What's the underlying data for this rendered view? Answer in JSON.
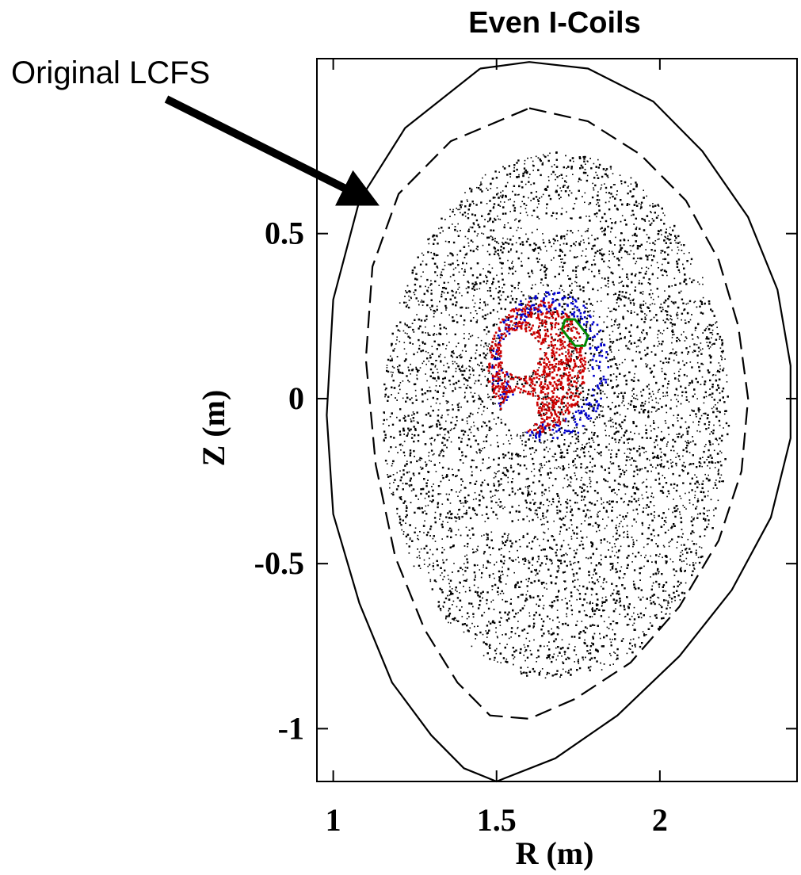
{
  "chart_data": {
    "type": "scatter",
    "title": "Even I-Coils",
    "xlabel": "R (m)",
    "ylabel": "Z (m)",
    "xlim": [
      0.95,
      2.42
    ],
    "ylim": [
      -1.16,
      1.03
    ],
    "x_ticks": [
      {
        "value": 1,
        "label": "1"
      },
      {
        "value": 1.5,
        "label": "1.5"
      },
      {
        "value": 2,
        "label": "2"
      }
    ],
    "y_ticks": [
      {
        "value": 0.5,
        "label": "0.5"
      },
      {
        "value": 0,
        "label": "0"
      },
      {
        "value": -0.5,
        "label": "-0.5"
      },
      {
        "value": -1,
        "label": "-1"
      }
    ],
    "annotation": {
      "text": "Original LCFS",
      "arrow_from": [
        1.15,
        0.92
      ],
      "arrow_to": [
        1.15,
        0.61
      ]
    },
    "series": [
      {
        "color": "#000000",
        "style": "solid",
        "points": [
          [
            1.45,
            1.0
          ],
          [
            1.6,
            1.02
          ],
          [
            1.78,
            1.0
          ],
          [
            1.98,
            0.9
          ],
          [
            2.13,
            0.75
          ],
          [
            2.27,
            0.55
          ],
          [
            2.36,
            0.33
          ],
          [
            2.4,
            0.1
          ],
          [
            2.4,
            -0.12
          ],
          [
            2.34,
            -0.36
          ],
          [
            2.22,
            -0.58
          ],
          [
            2.06,
            -0.78
          ],
          [
            1.87,
            -0.96
          ],
          [
            1.68,
            -1.09
          ],
          [
            1.5,
            -1.16
          ],
          [
            1.4,
            -1.12
          ],
          [
            1.3,
            -1.02
          ],
          [
            1.18,
            -0.86
          ],
          [
            1.08,
            -0.62
          ],
          [
            1.0,
            -0.35
          ],
          [
            0.98,
            -0.05
          ],
          [
            1.0,
            0.3
          ],
          [
            1.08,
            0.6
          ],
          [
            1.22,
            0.82
          ],
          [
            1.45,
            1.0
          ]
        ]
      },
      {
        "color": "#000000",
        "style": "dashed",
        "points": [
          [
            1.6,
            0.88
          ],
          [
            1.78,
            0.84
          ],
          [
            1.94,
            0.74
          ],
          [
            2.08,
            0.6
          ],
          [
            2.18,
            0.42
          ],
          [
            2.24,
            0.22
          ],
          [
            2.27,
            0.0
          ],
          [
            2.25,
            -0.22
          ],
          [
            2.18,
            -0.43
          ],
          [
            2.06,
            -0.63
          ],
          [
            1.91,
            -0.8
          ],
          [
            1.74,
            -0.91
          ],
          [
            1.6,
            -0.97
          ],
          [
            1.48,
            -0.96
          ],
          [
            1.38,
            -0.86
          ],
          [
            1.28,
            -0.7
          ],
          [
            1.19,
            -0.48
          ],
          [
            1.13,
            -0.2
          ],
          [
            1.1,
            0.12
          ],
          [
            1.12,
            0.4
          ],
          [
            1.2,
            0.62
          ],
          [
            1.36,
            0.78
          ],
          [
            1.6,
            0.88
          ]
        ]
      },
      {
        "color": "#008800",
        "style": "solid",
        "points": [
          [
            1.71,
            0.24
          ],
          [
            1.74,
            0.24
          ],
          [
            1.78,
            0.19
          ],
          [
            1.77,
            0.16
          ],
          [
            1.74,
            0.16
          ],
          [
            1.7,
            0.21
          ],
          [
            1.71,
            0.24
          ]
        ]
      }
    ],
    "scatter_regions": [
      {
        "color": "#000000",
        "center": [
          1.68,
          -0.05
        ],
        "radius": [
          0.53,
          0.8
        ],
        "count": 7000
      },
      {
        "color": "#0000cc",
        "center": [
          1.66,
          0.1
        ],
        "radius": [
          0.18,
          0.23
        ],
        "count": 700
      },
      {
        "color": "#cc0000",
        "center": [
          1.62,
          0.1
        ],
        "radius": [
          0.15,
          0.2
        ],
        "count": 1000
      }
    ],
    "islands": [
      {
        "center": [
          1.57,
          0.14
        ],
        "radius": [
          0.06,
          0.07
        ]
      },
      {
        "center": [
          1.57,
          -0.04
        ],
        "radius": [
          0.055,
          0.06
        ]
      },
      {
        "center": [
          1.55,
          -0.39
        ],
        "radius": [
          0.1,
          0.015
        ]
      },
      {
        "center": [
          1.67,
          0.53
        ],
        "radius": [
          0.1,
          0.015
        ]
      }
    ]
  }
}
